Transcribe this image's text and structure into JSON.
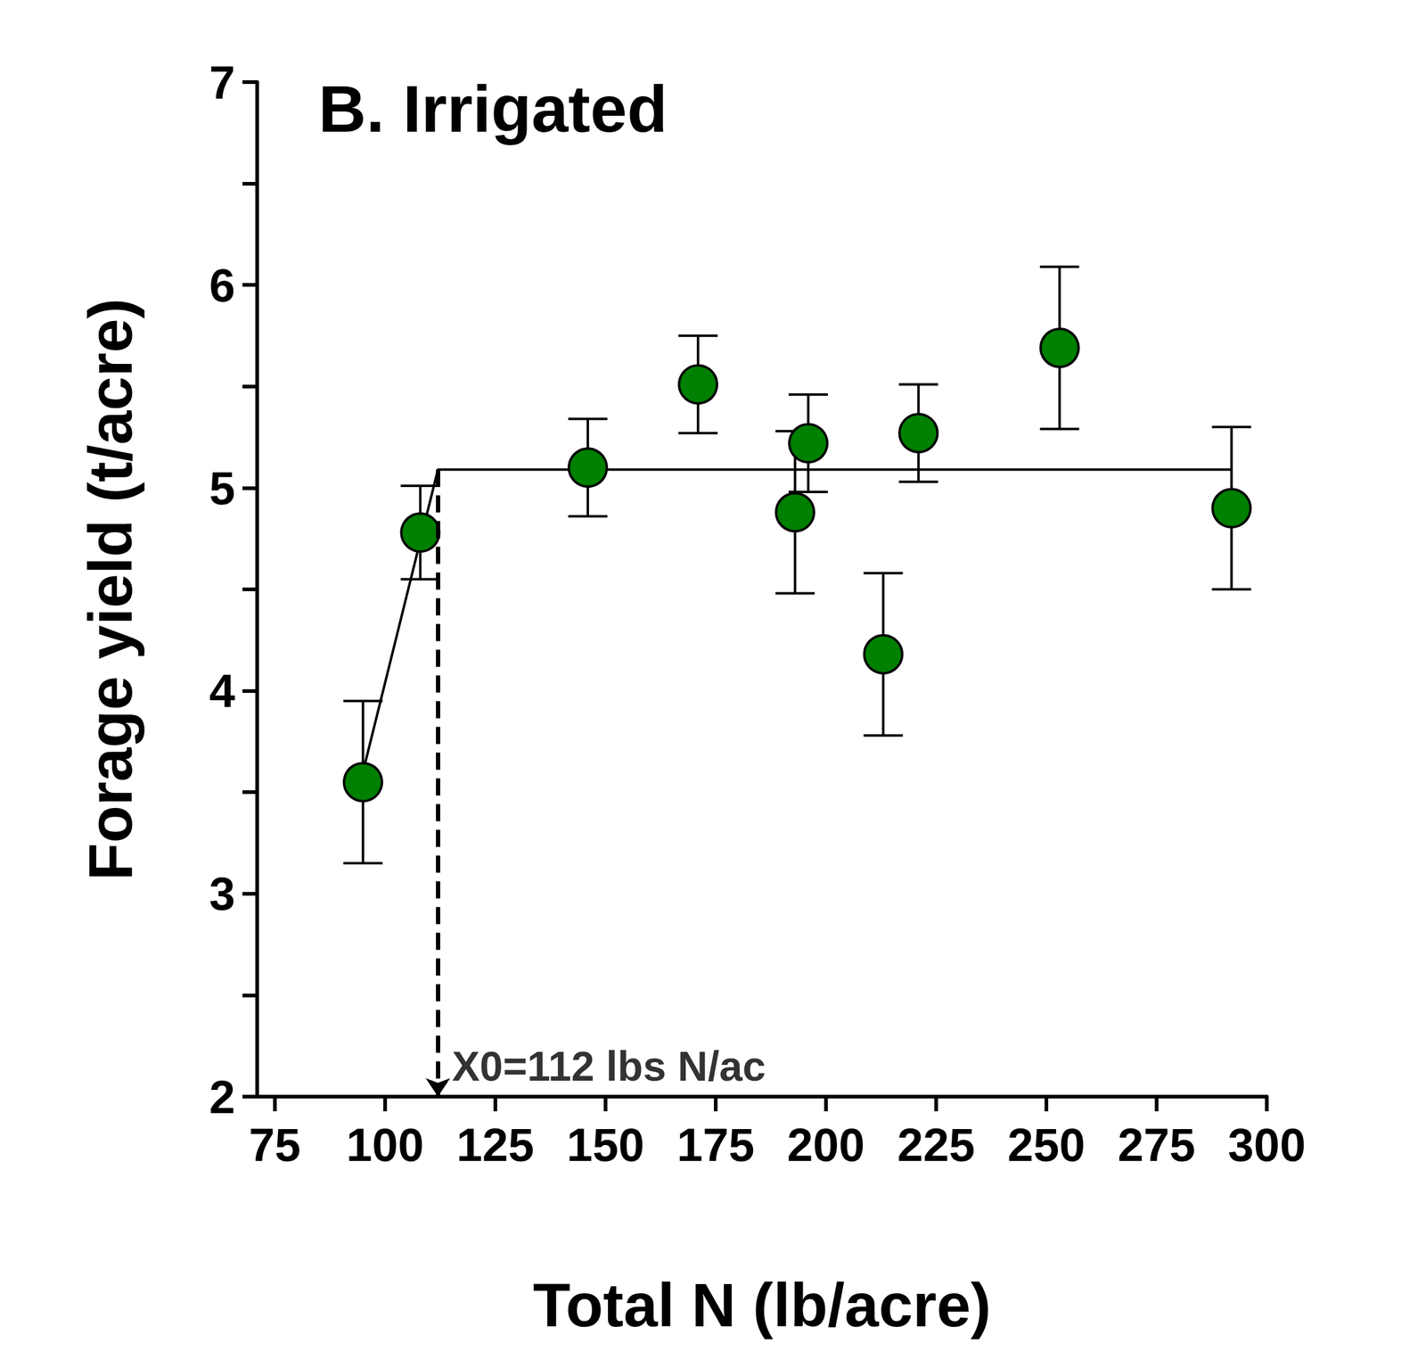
{
  "chart_data": {
    "type": "scatter",
    "title": "B. Irrigated",
    "x_label": "Total N (lb/acre)",
    "y_label": "Forage yield (t/acre)",
    "x": [
      95,
      108,
      146,
      171,
      193,
      196,
      213,
      221,
      253,
      292
    ],
    "values": [
      3.55,
      4.78,
      5.1,
      5.51,
      4.88,
      5.22,
      4.18,
      5.27,
      5.69,
      4.9
    ],
    "error": [
      0.4,
      0.23,
      0.24,
      0.24,
      0.4,
      0.24,
      0.4,
      0.24,
      0.4,
      0.4
    ],
    "color": "#008000",
    "marker": "circle",
    "fit": {
      "x": [
        95,
        112,
        292
      ],
      "y": [
        3.6,
        5.09,
        5.09
      ],
      "color": "#000000",
      "line_style": "solid"
    },
    "annotation": {
      "x": 112,
      "y_top": 5.09,
      "text": "X0=112 lbs N/ac",
      "line_style": "dashed"
    },
    "xlim": [
      71,
      300
    ],
    "xticks": [
      75,
      100,
      125,
      150,
      175,
      200,
      225,
      250,
      275,
      300
    ],
    "ylim": [
      2,
      7
    ],
    "yticks": [
      2,
      3,
      4,
      5,
      6,
      7
    ],
    "grid": false
  }
}
